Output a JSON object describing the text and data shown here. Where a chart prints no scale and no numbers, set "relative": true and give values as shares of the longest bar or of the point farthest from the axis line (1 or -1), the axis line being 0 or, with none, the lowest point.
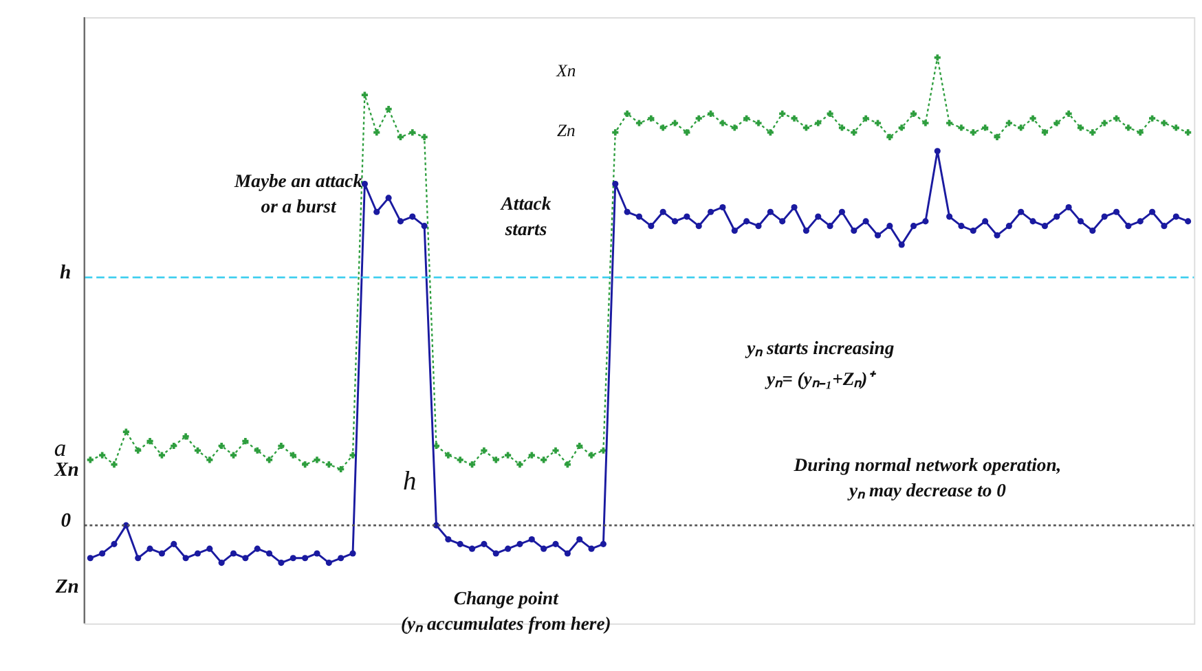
{
  "chart_data": {
    "type": "line",
    "relative": true,
    "categories": [
      null,
      null,
      null,
      null,
      null,
      null,
      null,
      null,
      null,
      null,
      null,
      null,
      null,
      null,
      null,
      null,
      null,
      null,
      null,
      null,
      null,
      null,
      null,
      null,
      null,
      null,
      null,
      null,
      null,
      null,
      null,
      null,
      null,
      null,
      null,
      null,
      null,
      null,
      null,
      null,
      null,
      null,
      null,
      null,
      null,
      null,
      null,
      null,
      null,
      null,
      null,
      null,
      null,
      null,
      null,
      null,
      null,
      null,
      null,
      null,
      null,
      null,
      null,
      null,
      null,
      null,
      null,
      null,
      null,
      null,
      null,
      null,
      null,
      null,
      null,
      null,
      null,
      null,
      null,
      null,
      null,
      null,
      null,
      null,
      null,
      null,
      null,
      null,
      null,
      null,
      null,
      null,
      null
    ],
    "series": [
      {
        "name": "Xn",
        "color": "#2e9e3e",
        "marker": "cross",
        "line_style": "dotted",
        "values": [
          0.14,
          0.15,
          0.13,
          0.2,
          0.16,
          0.18,
          0.15,
          0.17,
          0.19,
          0.16,
          0.14,
          0.17,
          0.15,
          0.18,
          0.16,
          0.14,
          0.17,
          0.15,
          0.13,
          0.14,
          0.13,
          0.12,
          0.15,
          0.92,
          0.84,
          0.89,
          0.83,
          0.84,
          0.83,
          0.17,
          0.15,
          0.14,
          0.13,
          0.16,
          0.14,
          0.15,
          0.13,
          0.15,
          0.14,
          0.16,
          0.13,
          0.17,
          0.15,
          0.16,
          0.84,
          0.88,
          0.86,
          0.87,
          0.85,
          0.86,
          0.84,
          0.87,
          0.88,
          0.86,
          0.85,
          0.87,
          0.86,
          0.84,
          0.88,
          0.87,
          0.85,
          0.86,
          0.88,
          0.85,
          0.84,
          0.87,
          0.86,
          0.83,
          0.85,
          0.88,
          0.86,
          1.0,
          0.86,
          0.85,
          0.84,
          0.85,
          0.83,
          0.86,
          0.85,
          0.87,
          0.84,
          0.86,
          0.88,
          0.85,
          0.84,
          0.86,
          0.87,
          0.85,
          0.84,
          0.87,
          0.86,
          0.85,
          0.84
        ]
      },
      {
        "name": "Zn",
        "color": "#1a1aa0",
        "marker": "circle",
        "line_style": "solid",
        "values": [
          -0.07,
          -0.06,
          -0.04,
          0.0,
          -0.07,
          -0.05,
          -0.06,
          -0.04,
          -0.07,
          -0.06,
          -0.05,
          -0.08,
          -0.06,
          -0.07,
          -0.05,
          -0.06,
          -0.08,
          -0.07,
          -0.07,
          -0.06,
          -0.08,
          -0.07,
          -0.06,
          0.73,
          0.67,
          0.7,
          0.65,
          0.66,
          0.64,
          0.0,
          -0.03,
          -0.04,
          -0.05,
          -0.04,
          -0.06,
          -0.05,
          -0.04,
          -0.03,
          -0.05,
          -0.04,
          -0.06,
          -0.03,
          -0.05,
          -0.04,
          0.73,
          0.67,
          0.66,
          0.64,
          0.67,
          0.65,
          0.66,
          0.64,
          0.67,
          0.68,
          0.63,
          0.65,
          0.64,
          0.67,
          0.65,
          0.68,
          0.63,
          0.66,
          0.64,
          0.67,
          0.63,
          0.65,
          0.62,
          0.64,
          0.6,
          0.64,
          0.65,
          0.8,
          0.66,
          0.64,
          0.63,
          0.65,
          0.62,
          0.64,
          0.67,
          0.65,
          0.64,
          0.66,
          0.68,
          0.65,
          0.63,
          0.66,
          0.67,
          0.64,
          0.65,
          0.67,
          0.64,
          0.66,
          0.65
        ]
      }
    ],
    "ref_lines": [
      {
        "axis": "y",
        "value": 0,
        "label": "0",
        "color": "#555555",
        "line_style": "dotted"
      },
      {
        "axis": "y",
        "value": 0.53,
        "label": "h",
        "color": "#33ccee",
        "line_style": "dashed"
      }
    ],
    "annotations": [
      "Xn",
      "Zn",
      "Maybe an attack\nor a burst",
      "Attack\nstarts",
      "yₙ starts increasing",
      "yₙ= (yₙ₋₁+Zₙ)⁺",
      "During normal network operation,\nyₙ may decrease to 0",
      "Change point\n(yₙ accumulates from here)",
      "h",
      "a"
    ]
  }
}
